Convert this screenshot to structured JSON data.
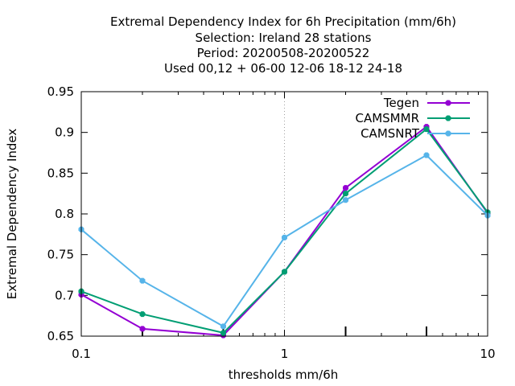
{
  "chart_data": {
    "type": "line",
    "title_lines": [
      "Extremal Dependency Index  for 6h Precipitation (mm/6h)",
      "Selection: Ireland     28 stations",
      "Period: 20200508-20200522",
      "Used  00,12  + 06-00 12-06 18-12 24-18"
    ],
    "xlabel": "thresholds mm/6h",
    "ylabel": "Extremal Dependency Index",
    "x_scale": "log",
    "xlim": [
      0.1,
      10
    ],
    "ylim": [
      0.65,
      0.95
    ],
    "x_ticks": [
      {
        "value": 0.1,
        "label": "0.1"
      },
      {
        "value": 1,
        "label": "1"
      },
      {
        "value": 10,
        "label": "10"
      }
    ],
    "x_minor_ticks": [
      0.2,
      0.3,
      0.4,
      0.5,
      0.6,
      0.7,
      0.8,
      0.9,
      2,
      3,
      4,
      5,
      6,
      7,
      8,
      9
    ],
    "x_labeled_minor_ticks": [
      0.2,
      0.5,
      2,
      5
    ],
    "y_ticks": [
      {
        "value": 0.65,
        "label": "0.65"
      },
      {
        "value": 0.7,
        "label": "0.7"
      },
      {
        "value": 0.75,
        "label": "0.75"
      },
      {
        "value": 0.8,
        "label": "0.8"
      },
      {
        "value": 0.85,
        "label": "0.85"
      },
      {
        "value": 0.9,
        "label": "0.9"
      },
      {
        "value": 0.95,
        "label": "0.95"
      }
    ],
    "grid": "dotted vertical at x=1",
    "legend_position": "top-right",
    "x": [
      0.1,
      0.2,
      0.5,
      1,
      2,
      5,
      10
    ],
    "series": [
      {
        "name": "Tegen",
        "color": "#9400d3",
        "values": [
          0.701,
          0.659,
          0.651,
          0.729,
          0.832,
          0.907,
          0.801
        ]
      },
      {
        "name": "CAMSMMR",
        "color": "#009e73",
        "values": [
          0.705,
          0.677,
          0.654,
          0.729,
          0.825,
          0.904,
          0.802
        ]
      },
      {
        "name": "CAMSNRT",
        "color": "#56b4e9",
        "values": [
          0.781,
          0.718,
          0.662,
          0.771,
          0.817,
          0.872,
          0.798
        ]
      }
    ]
  }
}
